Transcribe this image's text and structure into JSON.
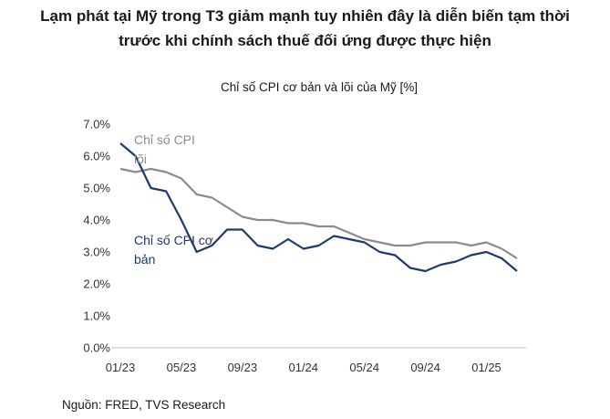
{
  "headline": {
    "line1": "Lạm phát tại Mỹ trong T3 giảm mạnh tuy nhiên đây là diễn biến  tạm thời",
    "line2": "trước khi chính sách thuế đối ứng được thực hiện"
  },
  "source": "Nguồn: FRED, TVS Research",
  "chart_data": {
    "type": "line",
    "title": "Chỉ số CPI cơ bản và lõi của Mỹ [%]",
    "x": [
      "01/23",
      "02/23",
      "03/23",
      "04/23",
      "05/23",
      "06/23",
      "07/23",
      "08/23",
      "09/23",
      "10/23",
      "11/23",
      "12/23",
      "01/24",
      "02/24",
      "03/24",
      "04/24",
      "05/24",
      "06/24",
      "07/24",
      "08/24",
      "09/24",
      "10/24",
      "11/24",
      "12/24",
      "01/25",
      "02/25",
      "03/25"
    ],
    "x_tick_labels": [
      "01/23",
      "05/23",
      "09/23",
      "01/24",
      "05/24",
      "09/24",
      "01/25"
    ],
    "y_tick_labels": [
      "0.0%",
      "1.0%",
      "2.0%",
      "3.0%",
      "4.0%",
      "5.0%",
      "6.0%",
      "7.0%"
    ],
    "ylim": [
      0,
      7
    ],
    "grid": false,
    "series": [
      {
        "name": "Chỉ số CPI lõi",
        "label_lines": [
          "Chỉ số CPI",
          "lõi"
        ],
        "color": "#8c8c8c",
        "values": [
          5.6,
          5.5,
          5.6,
          5.5,
          5.3,
          4.8,
          4.7,
          4.4,
          4.1,
          4.0,
          4.0,
          3.9,
          3.9,
          3.8,
          3.8,
          3.6,
          3.4,
          3.3,
          3.2,
          3.2,
          3.3,
          3.3,
          3.3,
          3.2,
          3.3,
          3.1,
          2.8
        ]
      },
      {
        "name": "Chỉ số CPI cơ bản",
        "label_lines": [
          "Chỉ số CPI cơ",
          "bản"
        ],
        "color": "#1f3a6e",
        "values": [
          6.4,
          6.0,
          5.0,
          4.9,
          4.0,
          3.0,
          3.2,
          3.7,
          3.7,
          3.2,
          3.1,
          3.4,
          3.1,
          3.2,
          3.5,
          3.4,
          3.3,
          3.0,
          2.9,
          2.5,
          2.4,
          2.6,
          2.7,
          2.9,
          3.0,
          2.8,
          2.4
        ]
      }
    ]
  }
}
